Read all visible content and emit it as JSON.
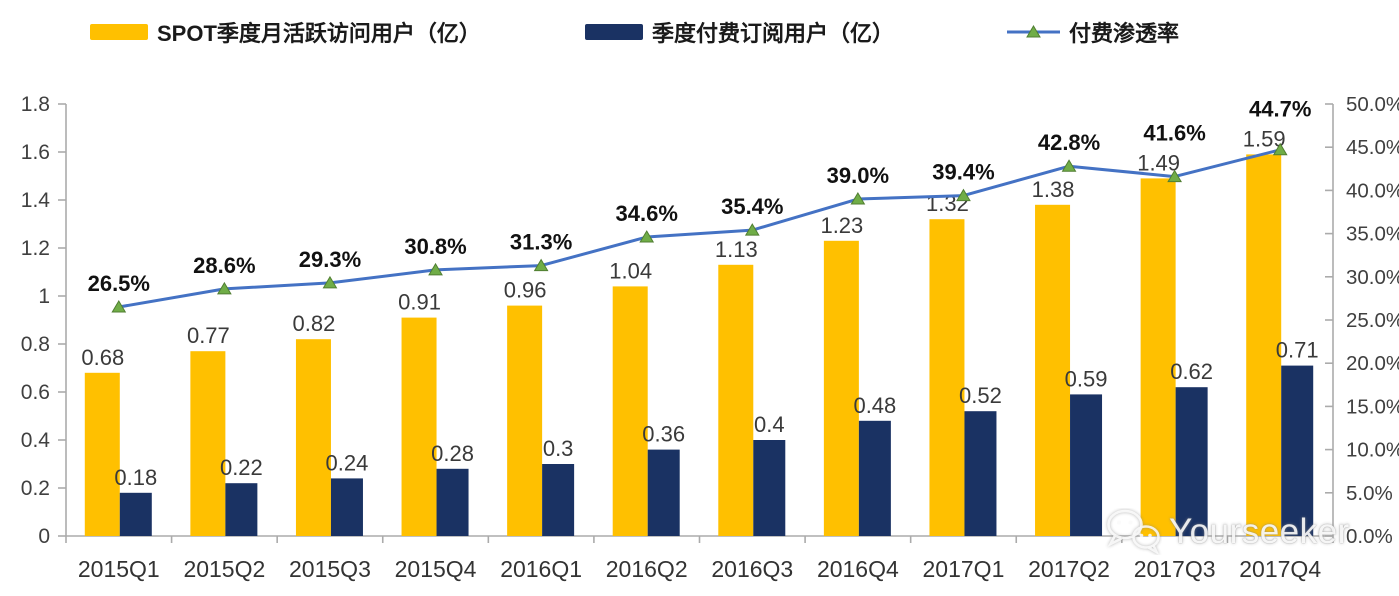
{
  "legend": {
    "items": [
      {
        "label": "SPOT季度月活跃访问用户（亿）",
        "swatch": "bar",
        "color": "#FFC000"
      },
      {
        "label": "季度付费订阅用户（亿）",
        "swatch": "bar",
        "color": "#1A3263"
      },
      {
        "label": "付费渗透率",
        "swatch": "line-marker",
        "color": "#4472C4",
        "marker_color": "#70AD47"
      }
    ]
  },
  "watermark": {
    "text": "Yourseeker",
    "icon": "wechat-icon"
  },
  "chart_data": {
    "type": "combo",
    "categories": [
      "2015Q1",
      "2015Q2",
      "2015Q3",
      "2015Q4",
      "2016Q1",
      "2016Q2",
      "2016Q3",
      "2016Q4",
      "2017Q1",
      "2017Q2",
      "2017Q3",
      "2017Q4"
    ],
    "series": [
      {
        "name": "SPOT季度月活跃访问用户（亿）",
        "type": "bar",
        "axis": "left",
        "color": "#FFC000",
        "values": [
          0.68,
          0.77,
          0.82,
          0.91,
          0.96,
          1.04,
          1.13,
          1.23,
          1.32,
          1.38,
          1.49,
          1.59
        ],
        "labels": [
          "0.68",
          "0.77",
          "0.82",
          "0.91",
          "0.96",
          "1.04",
          "1.13",
          "1.23",
          "1.32",
          "1.38",
          "1.49",
          "1.59"
        ]
      },
      {
        "name": "季度付费订阅用户（亿）",
        "type": "bar",
        "axis": "left",
        "color": "#1A3263",
        "values": [
          0.18,
          0.22,
          0.24,
          0.28,
          0.3,
          0.36,
          0.4,
          0.48,
          0.52,
          0.59,
          0.62,
          0.71
        ],
        "labels": [
          "0.18",
          "0.22",
          "0.24",
          "0.28",
          "0.3",
          "0.36",
          "0.4",
          "0.48",
          "0.52",
          "0.59",
          "0.62",
          "0.71"
        ]
      },
      {
        "name": "付费渗透率",
        "type": "line",
        "axis": "right",
        "color": "#4472C4",
        "marker": "triangle",
        "marker_color": "#70AD47",
        "values": [
          26.5,
          28.6,
          29.3,
          30.8,
          31.3,
          34.6,
          35.4,
          39.0,
          39.4,
          42.8,
          41.6,
          44.7
        ],
        "labels": [
          "26.5%",
          "28.6%",
          "29.3%",
          "30.8%",
          "31.3%",
          "34.6%",
          "35.4%",
          "39.0%",
          "39.4%",
          "42.8%",
          "41.6%",
          "44.7%"
        ]
      }
    ],
    "left_axis": {
      "min": 0,
      "max": 1.8,
      "step": 0.2,
      "ticks": [
        "0",
        "0.2",
        "0.4",
        "0.6",
        "0.8",
        "1",
        "1.2",
        "1.4",
        "1.6",
        "1.8"
      ]
    },
    "right_axis": {
      "min": 0,
      "max": 50,
      "step": 5,
      "ticks": [
        "0.0%",
        "5.0%",
        "10.0%",
        "15.0%",
        "20.0%",
        "25.0%",
        "30.0%",
        "35.0%",
        "40.0%",
        "45.0%",
        "50.0%"
      ]
    },
    "grid": false,
    "legend_position": "top"
  },
  "colors": {
    "axis_line": "#ABABAB",
    "tick_label": "#404040",
    "x_label": "#333333",
    "bar_label": "#3A3A3A",
    "pct_label": "#111111",
    "background": "#FFFFFF"
  }
}
